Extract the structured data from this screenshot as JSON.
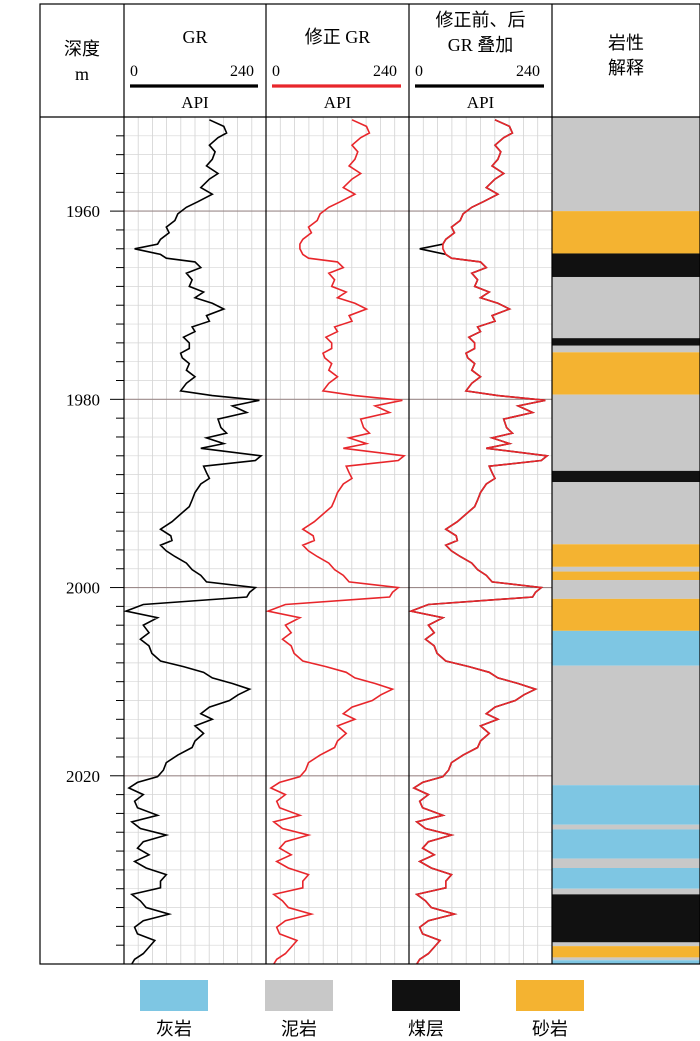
{
  "header": {
    "depth_title": [
      "深度",
      "m"
    ],
    "tracks": [
      {
        "title": [
          "GR"
        ],
        "range_min": "0",
        "range_max": "240",
        "unit": "API",
        "line_color": "#000000"
      },
      {
        "title": [
          "修正 GR"
        ],
        "range_min": "0",
        "range_max": "240",
        "unit": "API",
        "line_color": "#e8262b"
      },
      {
        "title": [
          "修正前、后",
          "GR 叠加"
        ],
        "range_min": "0",
        "range_max": "240",
        "unit": "API",
        "line_color": "#000000"
      }
    ],
    "lith_title": [
      "岩性",
      "解释"
    ]
  },
  "chart_data": {
    "type": "line",
    "depth_range": [
      1950,
      2040
    ],
    "x_range": [
      0,
      240
    ],
    "depth_ticks": [
      1960,
      1980,
      2000,
      2020
    ],
    "series": [
      {
        "track": "GR",
        "color": "#000000",
        "depth": [
          1950.3,
          1951,
          1951.7,
          1952.2,
          1953,
          1953.7,
          1954.5,
          1955.2,
          1956,
          1956.6,
          1957.5,
          1958.2,
          1959,
          1959.6,
          1960.3,
          1961,
          1961.7,
          1962.3,
          1963,
          1963.5,
          1964,
          1964.6,
          1965,
          1965.4,
          1966,
          1966.6,
          1967.3,
          1968,
          1968.6,
          1969.2,
          1969.8,
          1970.4,
          1971.1,
          1971.7,
          1972.3,
          1972.8,
          1973.4,
          1974,
          1974.6,
          1975.1,
          1975.6,
          1976.2,
          1976.9,
          1977.6,
          1978.3,
          1979.1,
          1979.6,
          1980.1,
          1980.7,
          1981.4,
          1982.1,
          1983,
          1983.6,
          1984.1,
          1984.7,
          1985.2,
          1986,
          1986.5,
          1987.1,
          1987.8,
          1988.4,
          1989,
          1989.9,
          1990.7,
          1991.4,
          1992.2,
          1993,
          1993.8,
          1994.5,
          1995,
          1995.5,
          1996.1,
          1996.7,
          1997.4,
          1998.1,
          1998.7,
          1999.4,
          2000,
          2000.5,
          2001,
          2001.8,
          2002.5,
          2003.2,
          2004,
          2004.8,
          2005.5,
          2006.2,
          2007,
          2007.8,
          2008.4,
          2009,
          2009.6,
          2010.2,
          2010.8,
          2011.4,
          2012,
          2012.7,
          2013.4,
          2014,
          2014.7,
          2015.5,
          2016.3,
          2017,
          2017.8,
          2018.6,
          2019.4,
          2020.1,
          2020.7,
          2021.3,
          2022,
          2022.7,
          2023.4,
          2024.2,
          2024.9,
          2025.6,
          2026.3,
          2027,
          2027.7,
          2028.4,
          2029.1,
          2029.8,
          2030.5,
          2031.2,
          2031.9,
          2032.6,
          2033.3,
          2034,
          2034.7,
          2035.4,
          2036.1,
          2036.8,
          2037.5,
          2038.2,
          2038.9,
          2039.5,
          2040
        ],
        "values": [
          145,
          170,
          175,
          160,
          145,
          155,
          150,
          140,
          160,
          145,
          130,
          150,
          125,
          105,
          90,
          85,
          70,
          75,
          60,
          55,
          15,
          60,
          70,
          120,
          130,
          105,
          115,
          110,
          135,
          120,
          150,
          170,
          140,
          145,
          115,
          120,
          100,
          110,
          110,
          95,
          98,
          110,
          105,
          120,
          105,
          95,
          150,
          232,
          185,
          210,
          160,
          165,
          175,
          140,
          170,
          130,
          235,
          225,
          135,
          140,
          145,
          130,
          120,
          115,
          110,
          95,
          80,
          60,
          78,
          80,
          60,
          70,
          85,
          105,
          115,
          130,
          140,
          225,
          215,
          210,
          30,
          0,
          55,
          30,
          40,
          25,
          40,
          45,
          60,
          100,
          135,
          150,
          185,
          215,
          195,
          180,
          145,
          130,
          150,
          120,
          135,
          120,
          115,
          90,
          70,
          65,
          55,
          20,
          5,
          30,
          15,
          20,
          55,
          10,
          25,
          70,
          30,
          20,
          40,
          15,
          35,
          70,
          60,
          60,
          10,
          25,
          35,
          75,
          30,
          15,
          20,
          50,
          40,
          30,
          15,
          10,
          60,
          80
        ]
      },
      {
        "track": "修正 GR",
        "color": "#e8262b",
        "depth": [
          1950.3,
          1951,
          1951.7,
          1952.2,
          1953,
          1953.7,
          1954.5,
          1955.2,
          1956,
          1956.6,
          1957.5,
          1958.2,
          1959,
          1959.6,
          1960.3,
          1961,
          1961.7,
          1962.3,
          1963,
          1963.5,
          1964,
          1964.6,
          1965,
          1965.4,
          1966,
          1966.6,
          1967.3,
          1968,
          1968.6,
          1969.2,
          1969.8,
          1970.4,
          1971.1,
          1971.7,
          1972.3,
          1972.8,
          1973.4,
          1974,
          1974.6,
          1975.1,
          1975.6,
          1976.2,
          1976.9,
          1977.6,
          1978.3,
          1979.1,
          1979.6,
          1980.1,
          1980.7,
          1981.4,
          1982.1,
          1983,
          1983.6,
          1984.1,
          1984.7,
          1985.2,
          1986,
          1986.5,
          1987.1,
          1987.8,
          1988.4,
          1989,
          1989.9,
          1990.7,
          1991.4,
          1992.2,
          1993,
          1993.8,
          1994.5,
          1995,
          1995.5,
          1996.1,
          1996.7,
          1997.4,
          1998.1,
          1998.7,
          1999.4,
          2000,
          2000.5,
          2001,
          2001.8,
          2002.5,
          2003.2,
          2004,
          2004.8,
          2005.5,
          2006.2,
          2007,
          2007.8,
          2008.4,
          2009,
          2009.6,
          2010.2,
          2010.8,
          2011.4,
          2012,
          2012.7,
          2013.4,
          2014,
          2014.7,
          2015.5,
          2016.3,
          2017,
          2017.8,
          2018.6,
          2019.4,
          2020.1,
          2020.7,
          2021.3,
          2022,
          2022.7,
          2023.4,
          2024.2,
          2024.9,
          2025.6,
          2026.3,
          2027,
          2027.7,
          2028.4,
          2029.1,
          2029.8,
          2030.5,
          2031.2,
          2031.9,
          2032.6,
          2033.3,
          2034,
          2034.7,
          2035.4,
          2036.1,
          2036.8,
          2037.5,
          2038.2,
          2038.9,
          2039.5,
          2040
        ],
        "values": [
          145,
          170,
          175,
          160,
          145,
          155,
          150,
          140,
          160,
          145,
          130,
          150,
          125,
          105,
          90,
          85,
          70,
          75,
          60,
          55,
          55,
          60,
          70,
          120,
          130,
          105,
          115,
          110,
          135,
          120,
          150,
          170,
          140,
          145,
          115,
          120,
          100,
          110,
          110,
          95,
          98,
          110,
          105,
          120,
          105,
          95,
          150,
          232,
          185,
          210,
          160,
          165,
          175,
          140,
          170,
          130,
          235,
          225,
          135,
          140,
          145,
          130,
          120,
          115,
          110,
          95,
          80,
          60,
          78,
          80,
          60,
          70,
          85,
          105,
          115,
          130,
          140,
          225,
          215,
          210,
          30,
          0,
          55,
          30,
          40,
          25,
          40,
          45,
          60,
          100,
          135,
          150,
          185,
          215,
          195,
          180,
          145,
          130,
          150,
          120,
          135,
          120,
          115,
          90,
          70,
          65,
          55,
          20,
          5,
          30,
          15,
          20,
          55,
          10,
          25,
          70,
          30,
          20,
          40,
          15,
          35,
          70,
          60,
          60,
          10,
          25,
          35,
          75,
          30,
          15,
          20,
          50,
          40,
          30,
          15,
          10,
          60,
          80
        ]
      }
    ],
    "lithology": [
      {
        "top": 1950,
        "base": 1960,
        "type": "mudstone"
      },
      {
        "top": 1960,
        "base": 1964.5,
        "type": "sandstone"
      },
      {
        "top": 1964.5,
        "base": 1967,
        "type": "coal"
      },
      {
        "top": 1967,
        "base": 1973.5,
        "type": "mudstone"
      },
      {
        "top": 1973.5,
        "base": 1974.3,
        "type": "coal"
      },
      {
        "top": 1974.3,
        "base": 1975,
        "type": "mudstone"
      },
      {
        "top": 1975,
        "base": 1979.5,
        "type": "sandstone"
      },
      {
        "top": 1979.5,
        "base": 1987.6,
        "type": "mudstone"
      },
      {
        "top": 1987.6,
        "base": 1988.8,
        "type": "coal"
      },
      {
        "top": 1988.8,
        "base": 1995.4,
        "type": "mudstone"
      },
      {
        "top": 1995.4,
        "base": 1997.8,
        "type": "sandstone"
      },
      {
        "top": 1997.8,
        "base": 1998.3,
        "type": "mudstone"
      },
      {
        "top": 1998.3,
        "base": 1999.2,
        "type": "sandstone"
      },
      {
        "top": 1999.2,
        "base": 2001.2,
        "type": "mudstone"
      },
      {
        "top": 2001.2,
        "base": 2004.6,
        "type": "sandstone"
      },
      {
        "top": 2004.6,
        "base": 2008.3,
        "type": "limestone"
      },
      {
        "top": 2008.3,
        "base": 2021,
        "type": "mudstone"
      },
      {
        "top": 2021,
        "base": 2025.2,
        "type": "limestone"
      },
      {
        "top": 2025.2,
        "base": 2025.7,
        "type": "mudstone"
      },
      {
        "top": 2025.7,
        "base": 2028.8,
        "type": "limestone"
      },
      {
        "top": 2028.8,
        "base": 2029.8,
        "type": "mudstone"
      },
      {
        "top": 2029.8,
        "base": 2032,
        "type": "limestone"
      },
      {
        "top": 2032,
        "base": 2032.6,
        "type": "mudstone"
      },
      {
        "top": 2032.6,
        "base": 2037.7,
        "type": "coal"
      },
      {
        "top": 2037.7,
        "base": 2038.1,
        "type": "mudstone"
      },
      {
        "top": 2038.1,
        "base": 2039.3,
        "type": "sandstone"
      },
      {
        "top": 2039.3,
        "base": 2039.6,
        "type": "mudstone"
      },
      {
        "top": 2039.6,
        "base": 2040,
        "type": "limestone"
      }
    ]
  },
  "legend": [
    {
      "key": "limestone",
      "label": "灰岩",
      "color": "#7ec6e3"
    },
    {
      "key": "mudstone",
      "label": "泥岩",
      "color": "#c8c8c8"
    },
    {
      "key": "coal",
      "label": "煤层",
      "color": "#111111"
    },
    {
      "key": "sandstone",
      "label": "砂岩",
      "color": "#f4b331"
    }
  ]
}
